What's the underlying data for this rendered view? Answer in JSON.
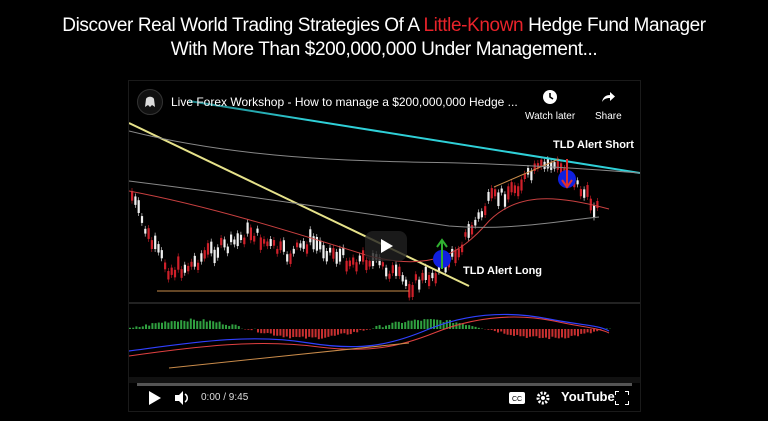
{
  "headline": {
    "line1_part1": "Discover Real World Trading Strategies Of A ",
    "line1_accent": "Little-Known",
    "line1_part2": " Hedge Fund Manager",
    "line2": "With More Than $200,000,000 Under Management..."
  },
  "video": {
    "title": "Live Forex Workshop - How to manage a $200,000,000 Hedge ...",
    "watch_later_label": "Watch later",
    "share_label": "Share",
    "alert_short_label": "TLD Alert Short",
    "alert_long_label": "TLD Alert Long",
    "time_display": "0:00 / 9:45",
    "brand": "YouTube",
    "progress": 0
  },
  "colors": {
    "accent": "#e8232a",
    "trend_cyan": "#2fd0d8",
    "trend_yellow": "#e6e28a",
    "candle_white": "#f0f0f0",
    "candle_red": "#d0202a"
  },
  "icons": [
    "shield-logo-icon",
    "clock-icon",
    "share-icon",
    "play-icon",
    "volume-icon",
    "captions-icon",
    "gear-icon",
    "fullscreen-icon"
  ]
}
